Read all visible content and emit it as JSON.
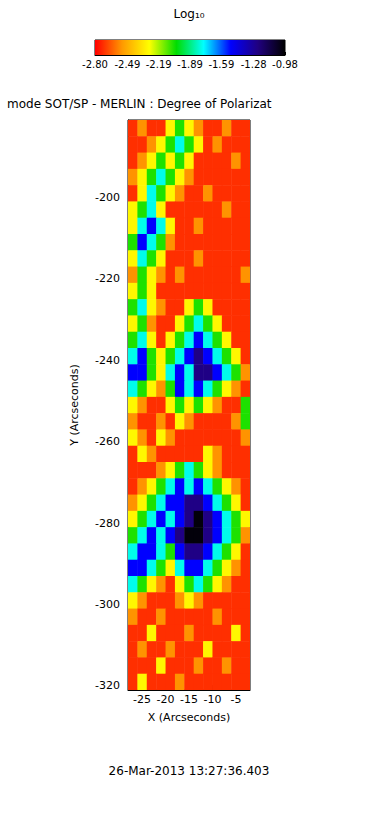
{
  "chart_data": {
    "type": "heatmap",
    "title": "mode SOT/SP - MERLIN : Degree of Polarizat",
    "xlabel": "X (Arcseconds)",
    "ylabel": "Y (Arcseconds)",
    "annotations": [
      "26-Mar-2013 13:27:36.403"
    ],
    "xlim": [
      -28,
      -2
    ],
    "xticks": [
      -25,
      -20,
      -15,
      -10,
      -5
    ],
    "ylim": [
      -321,
      -181
    ],
    "yticks": [
      -320,
      -300,
      -280,
      -260,
      -240,
      -220,
      -200
    ],
    "x": [
      -27,
      -25,
      -23,
      -21,
      -19,
      -17,
      -15,
      -13,
      -11,
      -9,
      -7,
      -5,
      -3
    ],
    "y": [
      -183,
      -187,
      -191,
      -195,
      -199,
      -203,
      -207,
      -211,
      -215,
      -219,
      -223,
      -227,
      -231,
      -235,
      -239,
      -243,
      -247,
      -251,
      -255,
      -259,
      -263,
      -267,
      -271,
      -275,
      -279,
      -283,
      -287,
      -291,
      -295,
      -299,
      -303,
      -307,
      -311,
      -315,
      -319
    ],
    "values": [
      [
        -2.72,
        -2.55,
        -2.72,
        -2.72,
        -2.3,
        -2.05,
        -2.3,
        -2.55,
        -2.72,
        -2.72,
        -2.55,
        -2.72,
        -2.72
      ],
      [
        -2.72,
        -2.72,
        -2.55,
        -2.3,
        -2.05,
        -1.78,
        -2.05,
        -2.3,
        -2.72,
        -2.55,
        -2.72,
        -2.72,
        -2.72
      ],
      [
        -2.72,
        -2.55,
        -2.3,
        -2.05,
        -2.3,
        -2.05,
        -2.3,
        -2.72,
        -2.72,
        -2.72,
        -2.72,
        -2.55,
        -2.72
      ],
      [
        -2.55,
        -2.3,
        -2.05,
        -1.78,
        -2.05,
        -2.3,
        -2.55,
        -2.72,
        -2.72,
        -2.72,
        -2.72,
        -2.72,
        -2.72
      ],
      [
        -2.72,
        -2.3,
        -1.78,
        -2.05,
        -2.3,
        -2.55,
        -2.72,
        -2.72,
        -2.55,
        -2.72,
        -2.72,
        -2.72,
        -2.72
      ],
      [
        -2.3,
        -2.05,
        -1.78,
        -2.3,
        -2.72,
        -2.72,
        -2.72,
        -2.72,
        -2.72,
        -2.72,
        -2.55,
        -2.72,
        -2.72
      ],
      [
        -2.3,
        -1.78,
        -1.5,
        -1.78,
        -2.3,
        -2.72,
        -2.72,
        -2.55,
        -2.72,
        -2.72,
        -2.72,
        -2.72,
        -2.72
      ],
      [
        -2.05,
        -1.5,
        -1.78,
        -2.05,
        -2.55,
        -2.72,
        -2.72,
        -2.72,
        -2.72,
        -2.72,
        -2.72,
        -2.72,
        -2.72
      ],
      [
        -2.3,
        -1.78,
        -2.05,
        -2.3,
        -2.72,
        -2.72,
        -2.72,
        -2.55,
        -2.72,
        -2.72,
        -2.72,
        -2.72,
        -2.72
      ],
      [
        -2.55,
        -2.05,
        -2.3,
        -2.55,
        -2.72,
        -2.55,
        -2.72,
        -2.72,
        -2.72,
        -2.72,
        -2.72,
        -2.72,
        -2.55
      ],
      [
        -2.3,
        -2.05,
        -2.3,
        -2.72,
        -2.72,
        -2.72,
        -2.72,
        -2.72,
        -2.72,
        -2.72,
        -2.72,
        -2.72,
        -2.72
      ],
      [
        -2.05,
        -1.78,
        -2.3,
        -2.55,
        -2.72,
        -2.72,
        -2.3,
        -2.05,
        -2.3,
        -2.72,
        -2.72,
        -2.72,
        -2.72
      ],
      [
        -2.3,
        -2.05,
        -2.55,
        -2.72,
        -2.72,
        -2.3,
        -2.05,
        -1.78,
        -2.05,
        -2.3,
        -2.72,
        -2.72,
        -2.72
      ],
      [
        -2.05,
        -1.78,
        -2.3,
        -2.72,
        -2.3,
        -2.05,
        -1.78,
        -1.5,
        -1.78,
        -2.05,
        -2.3,
        -2.72,
        -2.72
      ],
      [
        -1.78,
        -1.5,
        -2.05,
        -2.3,
        -2.05,
        -1.78,
        -1.5,
        -1.25,
        -1.5,
        -1.78,
        -2.05,
        -2.3,
        -2.72
      ],
      [
        -1.5,
        -1.5,
        -2.05,
        -2.3,
        -1.78,
        -1.5,
        -1.78,
        -1.25,
        -1.25,
        -1.5,
        -1.78,
        -2.05,
        -2.55
      ],
      [
        -1.78,
        -2.05,
        -2.3,
        -2.55,
        -2.05,
        -1.5,
        -1.78,
        -1.5,
        -1.78,
        -2.05,
        -2.3,
        -2.55,
        -2.72
      ],
      [
        -2.3,
        -2.55,
        -2.72,
        -2.72,
        -2.3,
        -2.05,
        -2.3,
        -2.05,
        -2.3,
        -2.55,
        -2.72,
        -2.72,
        -2.05
      ],
      [
        -2.55,
        -2.72,
        -2.72,
        -2.55,
        -2.72,
        -2.3,
        -2.55,
        -2.72,
        -2.72,
        -2.72,
        -2.72,
        -2.55,
        -2.05
      ],
      [
        -2.3,
        -2.55,
        -2.72,
        -2.3,
        -2.55,
        -2.72,
        -2.72,
        -2.72,
        -2.72,
        -2.72,
        -2.72,
        -2.72,
        -2.55
      ],
      [
        -2.72,
        -2.3,
        -2.55,
        -2.72,
        -2.72,
        -2.72,
        -2.72,
        -2.72,
        -2.3,
        -2.55,
        -2.72,
        -2.72,
        -2.72
      ],
      [
        -2.72,
        -2.72,
        -2.72,
        -2.55,
        -2.3,
        -2.05,
        -1.78,
        -2.05,
        -2.3,
        -2.55,
        -2.72,
        -2.72,
        -2.72
      ],
      [
        -2.72,
        -2.55,
        -2.3,
        -2.05,
        -1.78,
        -1.5,
        -1.78,
        -1.5,
        -1.78,
        -2.05,
        -2.3,
        -2.55,
        -2.72
      ],
      [
        -2.55,
        -2.3,
        -2.05,
        -1.78,
        -1.5,
        -1.5,
        -1.25,
        -1.25,
        -1.5,
        -1.78,
        -2.05,
        -2.3,
        -2.72
      ],
      [
        -2.3,
        -2.05,
        -1.78,
        -1.5,
        -1.78,
        -1.5,
        -1.25,
        -1.0,
        -1.25,
        -1.5,
        -1.78,
        -2.05,
        -2.3
      ],
      [
        -2.05,
        -1.78,
        -1.5,
        -1.78,
        -1.5,
        -1.25,
        -1.0,
        -1.0,
        -1.25,
        -1.5,
        -1.78,
        -2.05,
        -2.55
      ],
      [
        -1.78,
        -1.5,
        -1.5,
        -1.78,
        -2.05,
        -1.5,
        -1.25,
        -1.25,
        -1.5,
        -1.78,
        -2.05,
        -2.3,
        -2.72
      ],
      [
        -1.5,
        -1.5,
        -1.78,
        -2.05,
        -2.3,
        -1.78,
        -1.5,
        -1.5,
        -1.78,
        -2.05,
        -2.3,
        -2.55,
        -2.72
      ],
      [
        -1.78,
        -2.05,
        -2.3,
        -2.55,
        -2.72,
        -2.3,
        -2.05,
        -1.78,
        -2.05,
        -2.3,
        -2.55,
        -2.72,
        -2.72
      ],
      [
        -2.3,
        -2.55,
        -2.72,
        -2.72,
        -2.72,
        -2.55,
        -2.3,
        -2.55,
        -2.72,
        -2.72,
        -2.72,
        -2.72,
        -2.72
      ],
      [
        -2.55,
        -2.72,
        -2.72,
        -2.55,
        -2.72,
        -2.72,
        -2.72,
        -2.72,
        -2.72,
        -2.55,
        -2.72,
        -2.72,
        -2.72
      ],
      [
        -2.72,
        -2.72,
        -2.3,
        -2.72,
        -2.72,
        -2.72,
        -2.55,
        -2.72,
        -2.72,
        -2.72,
        -2.72,
        -2.3,
        -2.72
      ],
      [
        -2.72,
        -2.55,
        -2.72,
        -2.72,
        -2.55,
        -2.72,
        -2.72,
        -2.72,
        -2.3,
        -2.72,
        -2.72,
        -2.72,
        -2.72
      ],
      [
        -2.72,
        -2.72,
        -2.72,
        -2.3,
        -2.72,
        -2.72,
        -2.72,
        -2.55,
        -2.72,
        -2.72,
        -2.55,
        -2.72,
        -2.72
      ],
      [
        -2.72,
        -2.3,
        -2.72,
        -2.72,
        -2.72,
        -2.55,
        -2.72,
        -2.72,
        -2.72,
        -2.72,
        -2.72,
        -2.72,
        -2.72
      ]
    ],
    "colorbar": {
      "label": "Log₁₀",
      "range": [
        -2.8,
        -0.98
      ],
      "ticks": [
        {
          "value": -2.8,
          "label": "-2.80"
        },
        -2.49,
        -2.19,
        -1.89,
        -1.59,
        -1.28,
        -0.98
      ],
      "colors": [
        "#ff0000",
        "#ff9900",
        "#ffff00",
        "#00dd00",
        "#00ffff",
        "#0000ff",
        "#200080",
        "#000000"
      ]
    }
  }
}
